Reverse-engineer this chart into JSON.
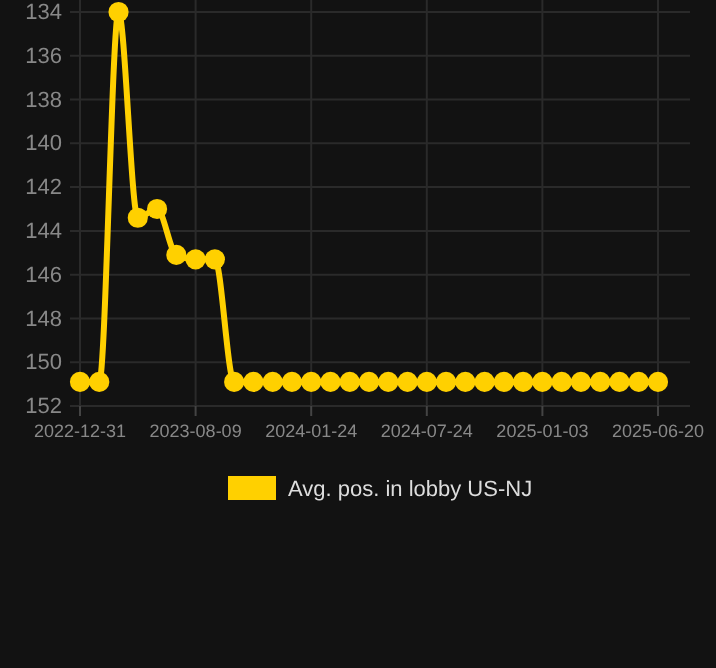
{
  "chart_data": {
    "type": "line",
    "categories": [
      "2022-12-31",
      null,
      null,
      null,
      null,
      null,
      "2023-08-09",
      null,
      null,
      null,
      null,
      null,
      "2024-01-24",
      null,
      null,
      null,
      null,
      null,
      "2024-07-24",
      null,
      null,
      null,
      null,
      null,
      "2025-01-03",
      null,
      null,
      null,
      null,
      null,
      "2025-06-20"
    ],
    "series": [
      {
        "name": "Avg. pos. in lobby US-NJ",
        "color": "#ffd000",
        "values": [
          150.9,
          150.9,
          134,
          143.4,
          143,
          145.1,
          145.3,
          145.3,
          150.9,
          150.9,
          150.9,
          150.9,
          150.9,
          150.9,
          150.9,
          150.9,
          150.9,
          150.9,
          150.9,
          150.9,
          150.9,
          150.9,
          150.9,
          150.9,
          150.9,
          150.9,
          150.9,
          150.9,
          150.9,
          150.9,
          150.9
        ]
      }
    ],
    "ylim": [
      152,
      134
    ],
    "yticks": [
      134,
      136,
      138,
      140,
      142,
      144,
      146,
      148,
      150,
      152
    ],
    "grid": true,
    "legend": "bottom",
    "marker": "circle",
    "line_style": "solid"
  }
}
